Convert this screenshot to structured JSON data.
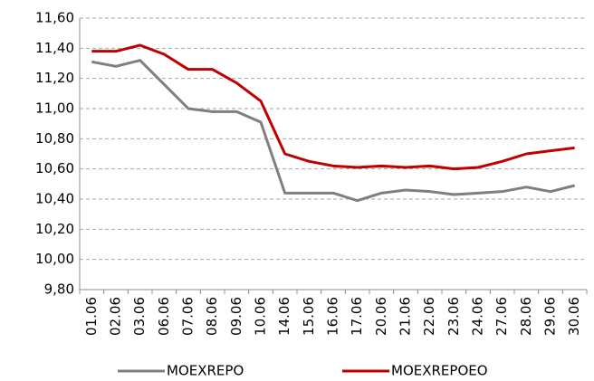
{
  "chart_data": {
    "type": "line",
    "categories": [
      "01.06",
      "02.06",
      "03.06",
      "06.06",
      "07.06",
      "08.06",
      "09.06",
      "10.06",
      "14.06",
      "15.06",
      "16.06",
      "17.06",
      "20.06",
      "21.06",
      "22.06",
      "23.06",
      "24.06",
      "27.06",
      "28.06",
      "29.06",
      "30.06"
    ],
    "series": [
      {
        "name": "MOEXREPO",
        "color": "#7f7f7f",
        "values": [
          11.31,
          11.28,
          11.32,
          11.16,
          11.0,
          10.98,
          10.98,
          10.91,
          10.44,
          10.44,
          10.44,
          10.39,
          10.44,
          10.46,
          10.45,
          10.43,
          10.44,
          10.45,
          10.48,
          10.45,
          10.49
        ]
      },
      {
        "name": "MOEXREPOEO",
        "color": "#c00000",
        "values": [
          11.38,
          11.38,
          11.42,
          11.36,
          11.26,
          11.26,
          11.17,
          11.05,
          10.7,
          10.65,
          10.62,
          10.61,
          10.62,
          10.61,
          10.62,
          10.6,
          10.61,
          10.65,
          10.7,
          10.72,
          10.74
        ]
      }
    ],
    "ylim": [
      9.8,
      11.6
    ],
    "yticks": [
      {
        "value": 9.8,
        "label": "9,80"
      },
      {
        "value": 10.0,
        "label": "10,00"
      },
      {
        "value": 10.2,
        "label": "10,20"
      },
      {
        "value": 10.4,
        "label": "10,40"
      },
      {
        "value": 10.6,
        "label": "10,60"
      },
      {
        "value": 10.8,
        "label": "10,80"
      },
      {
        "value": 11.0,
        "label": "11,00"
      },
      {
        "value": 11.2,
        "label": "11,20"
      },
      {
        "value": 11.4,
        "label": "11,40"
      },
      {
        "value": 11.6,
        "label": "11,60"
      }
    ],
    "grid": true
  }
}
